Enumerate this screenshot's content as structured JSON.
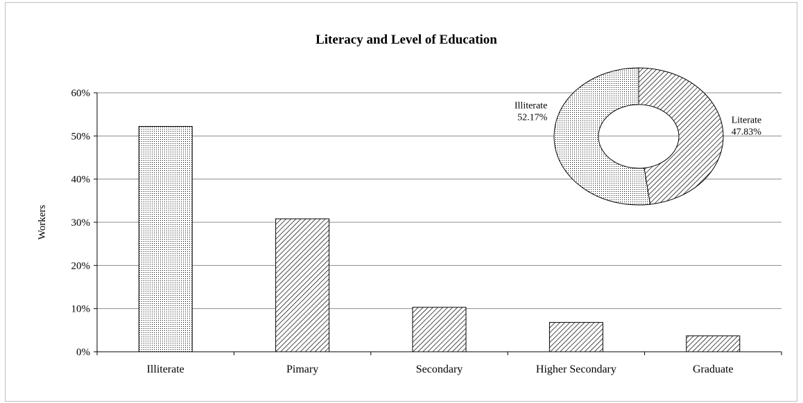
{
  "chart_data": [
    {
      "type": "bar",
      "title": "Literacy and Level of Education",
      "xlabel": "",
      "ylabel": "Workers",
      "categories": [
        "Illiterate",
        "Pimary",
        "Secondary",
        "Higher Secondary",
        "Graduate"
      ],
      "values": [
        52.2,
        30.8,
        10.3,
        6.8,
        3.7
      ],
      "ylim": [
        0,
        60
      ],
      "yticks": [
        "0%",
        "10%",
        "20%",
        "30%",
        "40%",
        "50%",
        "60%"
      ],
      "grid": true,
      "fill_patterns": [
        "dotted",
        "hatched",
        "hatched",
        "hatched",
        "hatched"
      ]
    },
    {
      "type": "pie",
      "style": "doughnut",
      "slices": [
        {
          "label": "Literate",
          "value": 47.83,
          "data_label": "47.83%",
          "pattern": "hatched"
        },
        {
          "label": "Illiterate",
          "value": 52.17,
          "data_label": "52.17%",
          "pattern": "dotted"
        }
      ]
    }
  ]
}
